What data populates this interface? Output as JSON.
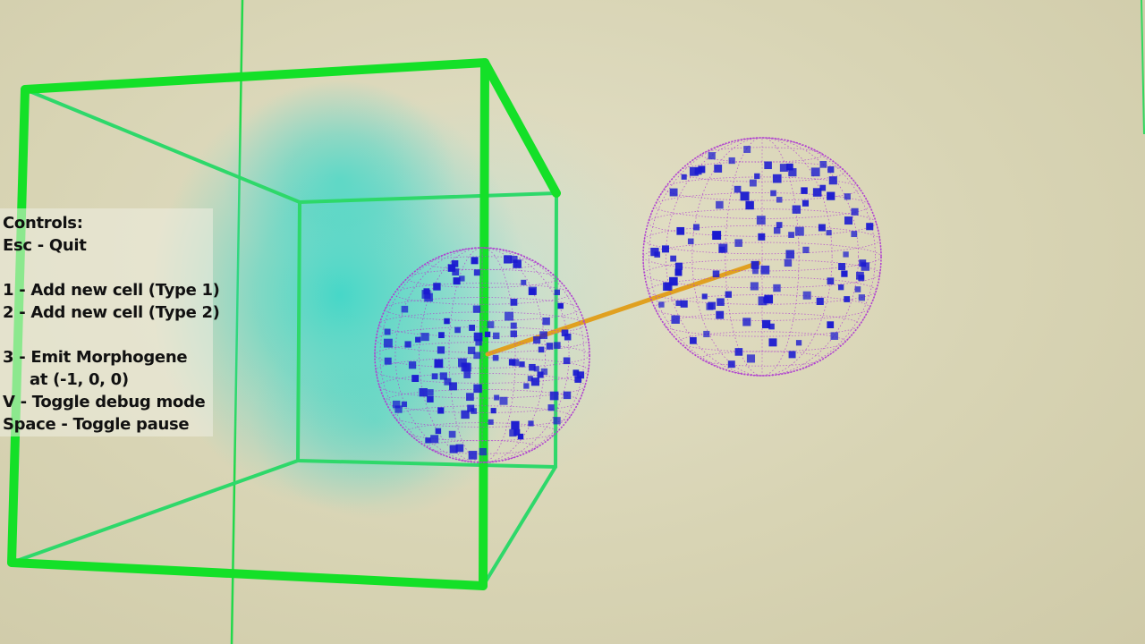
{
  "controls": {
    "title": "Controls:",
    "quit": "Esc - Quit",
    "add_type1": "1 - Add new cell (Type 1)",
    "add_type2": "2 - Add new cell (Type 2)",
    "emit_morphogene": "3 - Emit Morphogene",
    "emit_location": "at (-1, 0, 0)",
    "toggle_debug": "V - Toggle debug mode",
    "toggle_pause": "Space - Toggle pause"
  },
  "scene": {
    "colors": {
      "background": "#d8d4b4",
      "bounding_box": "#1ee632",
      "morphogene_cloud": "#2ed6c8",
      "cell_wireframe": "#b040d0",
      "cell_markers": "#1a1ad0",
      "link": "#e0a020"
    }
  }
}
